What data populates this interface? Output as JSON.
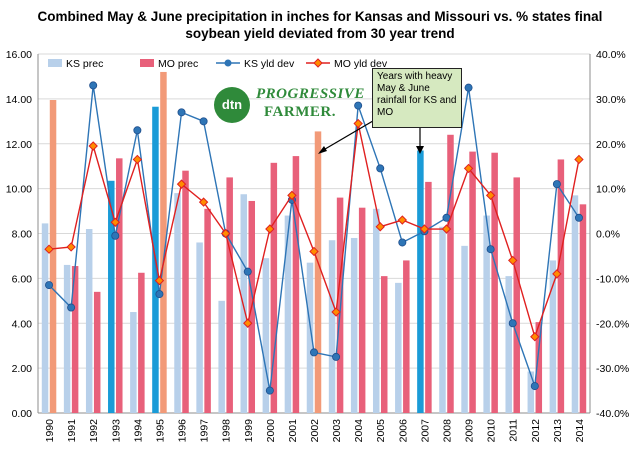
{
  "chart_data": {
    "type": "bar-line-combo",
    "title": "Combined May & June precipitation in inches for Kansas and Missouri vs. % states final soybean yield deviated from 30 year trend",
    "categories": [
      "1990",
      "1991",
      "1992",
      "1993",
      "1994",
      "1995",
      "1996",
      "1997",
      "1998",
      "1999",
      "2000",
      "2001",
      "2002",
      "2003",
      "2004",
      "2005",
      "2006",
      "2007",
      "2008",
      "2009",
      "2010",
      "2011",
      "2012",
      "2013",
      "2014"
    ],
    "left_axis": {
      "min": 0,
      "max": 16,
      "step": 2,
      "format": "0.00"
    },
    "right_axis": {
      "min": -40,
      "max": 40,
      "step": 10,
      "format": "0.0%"
    },
    "grid": "horizontal",
    "legend": {
      "position": "top-left",
      "entries": [
        "KS prec",
        "MO prec",
        "KS yld dev",
        "MO yld dev"
      ]
    },
    "series": [
      {
        "name": "KS prec",
        "type": "bar",
        "axis": "left",
        "color": "#b8d0ea",
        "values": [
          8.45,
          6.6,
          8.2,
          10.35,
          4.5,
          13.65,
          9.8,
          7.6,
          5.0,
          9.75,
          6.9,
          8.8,
          6.7,
          7.7,
          7.8,
          9.1,
          5.8,
          11.7,
          8.3,
          7.45,
          8.8,
          6.1,
          1.85,
          6.8,
          9.7
        ]
      },
      {
        "name": "MO prec",
        "type": "bar",
        "axis": "left",
        "color": "#e8607a",
        "values": [
          13.95,
          6.55,
          5.4,
          11.35,
          6.25,
          15.2,
          10.8,
          9.1,
          10.5,
          9.45,
          11.15,
          11.45,
          12.55,
          9.6,
          9.15,
          6.1,
          6.8,
          10.3,
          12.4,
          11.65,
          11.6,
          10.5,
          4.05,
          11.3,
          9.3
        ]
      },
      {
        "name": "KS yld dev",
        "type": "line",
        "axis": "right",
        "color": "#2e75b6",
        "marker": "circle",
        "values": [
          -11.5,
          -16.5,
          33.0,
          -0.5,
          23.0,
          -13.5,
          27.0,
          25.0,
          0.0,
          -8.5,
          -35.0,
          7.5,
          -26.5,
          -27.5,
          28.5,
          14.5,
          -2.0,
          0.5,
          3.5,
          32.5,
          -3.5,
          -20.0,
          -34.0,
          11.0,
          3.5
        ]
      },
      {
        "name": "MO yld dev",
        "type": "line",
        "axis": "right",
        "color": "#e02020",
        "marker": "diamond",
        "values": [
          -3.5,
          -3.0,
          19.5,
          2.5,
          16.5,
          -10.5,
          11.0,
          7.0,
          0.0,
          -20.0,
          1.0,
          8.5,
          -4.0,
          -17.5,
          24.5,
          1.5,
          3.0,
          1.0,
          1.0,
          14.5,
          8.5,
          -6.0,
          -23.0,
          -9.0,
          16.5
        ]
      }
    ],
    "highlights": [
      {
        "year": "1990",
        "series": "MO prec",
        "color": "#f29a78"
      },
      {
        "year": "2002",
        "series": "MO prec",
        "color": "#f29a78"
      },
      {
        "year": "1995",
        "series": "MO prec",
        "color": "#f29a78"
      },
      {
        "year": "1993",
        "series": "KS prec",
        "color": "#1a9bd7"
      },
      {
        "year": "1995",
        "series": "KS prec",
        "color": "#1a9bd7"
      },
      {
        "year": "2007",
        "series": "KS prec",
        "color": "#1a9bd7"
      }
    ],
    "annotation": {
      "text": "Years with heavy May & June rainfall for KS and MO"
    }
  },
  "logo": {
    "line1": "dtn",
    "line2": "PROGRESSIVE",
    "line3": "FARMER."
  }
}
